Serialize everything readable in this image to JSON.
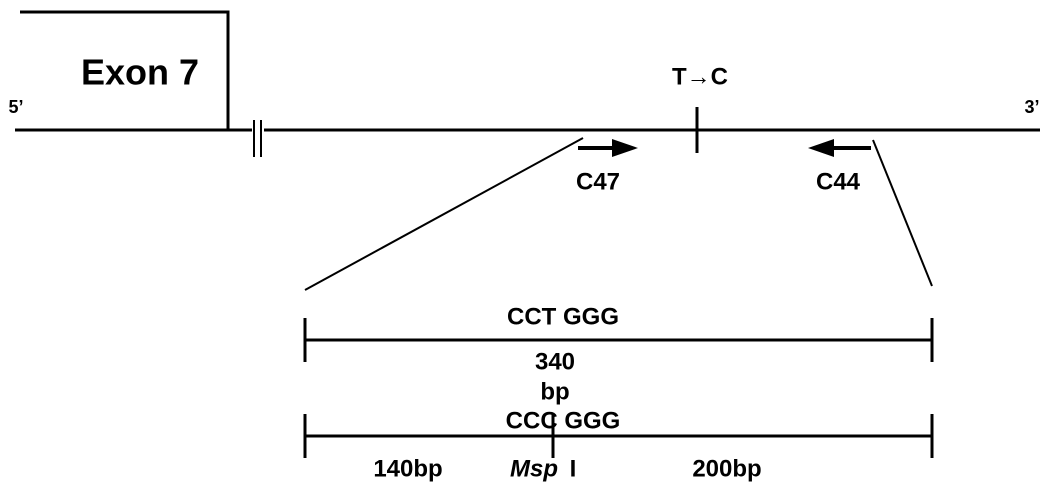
{
  "exon": {
    "label": "Exon 7"
  },
  "strand": {
    "five_prime": "5’",
    "three_prime": "3’"
  },
  "mutation": {
    "label": "T→C"
  },
  "primers": {
    "forward": "C47",
    "reverse": "C44"
  },
  "wild_type": {
    "site": "CCT GGG",
    "size": "340",
    "unit": "bp"
  },
  "mutant": {
    "site": "CCC GGG",
    "left": "140bp",
    "enzyme": {
      "name": "Msp",
      "suffix": "I"
    },
    "right": "200bp"
  }
}
